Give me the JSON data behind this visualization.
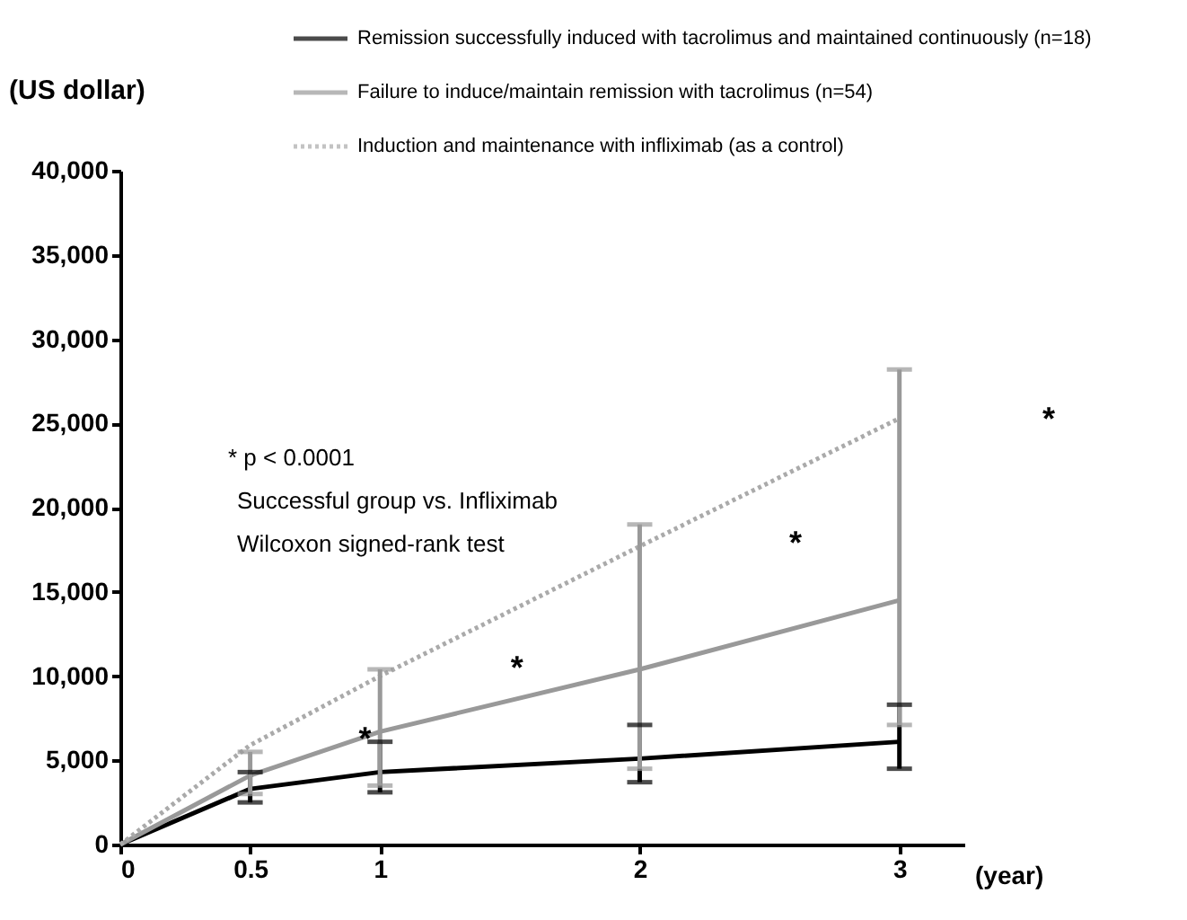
{
  "chart_data": {
    "type": "line",
    "xlabel": "(year)",
    "ylabel": "(US dollar)",
    "x": [
      0,
      0.5,
      1,
      2,
      3
    ],
    "series": [
      {
        "name": "Remission successfully induced with tacrolimus and maintained continuously (n=18)",
        "color": "#000000",
        "line_style": "solid",
        "values": [
          0,
          3300,
          4300,
          5100,
          6100
        ],
        "errors": [
          null,
          [
            2500,
            4300
          ],
          [
            3100,
            6100
          ],
          [
            3700,
            7100
          ],
          [
            4500,
            8300
          ]
        ]
      },
      {
        "name": "Failure to induce/maintain remission with tacrolimus (n=54)",
        "color": "#999999",
        "line_style": "solid",
        "values": [
          0,
          4100,
          6700,
          10400,
          14500
        ],
        "errors": [
          null,
          [
            3000,
            5500
          ],
          [
            3500,
            10400
          ],
          [
            4500,
            19000
          ],
          [
            7100,
            28200
          ]
        ]
      },
      {
        "name": "Induction and maintenance with infliximab (as a control)",
        "color": "#aaaaaa",
        "line_style": "dotted",
        "values": [
          0,
          5900,
          10000,
          17700,
          25300
        ]
      }
    ],
    "xlim": [
      0,
      3.25
    ],
    "xticks": [
      0,
      0.5,
      1,
      2,
      3
    ],
    "ylim": [
      0,
      40000
    ],
    "yticks": [
      0,
      {
        "value": 5000,
        "label": "5,000"
      },
      {
        "value": 10000,
        "label": "10,000"
      },
      {
        "value": 15000,
        "label": "15,000"
      },
      {
        "value": 20000,
        "label": "20,000"
      },
      {
        "value": 25000,
        "label": "25,000"
      },
      {
        "value": 30000,
        "label": "30,000"
      },
      {
        "value": 35000,
        "label": "35,000"
      },
      {
        "value": 40000,
        "label": "40,000"
      }
    ],
    "grid": false,
    "legend": "top",
    "marker": "none",
    "annotations": [
      "* p < 0.0001",
      "Successful group vs. Infliximab",
      "Wilcoxon signed-rank test",
      "*",
      "*",
      "*",
      "*"
    ]
  }
}
